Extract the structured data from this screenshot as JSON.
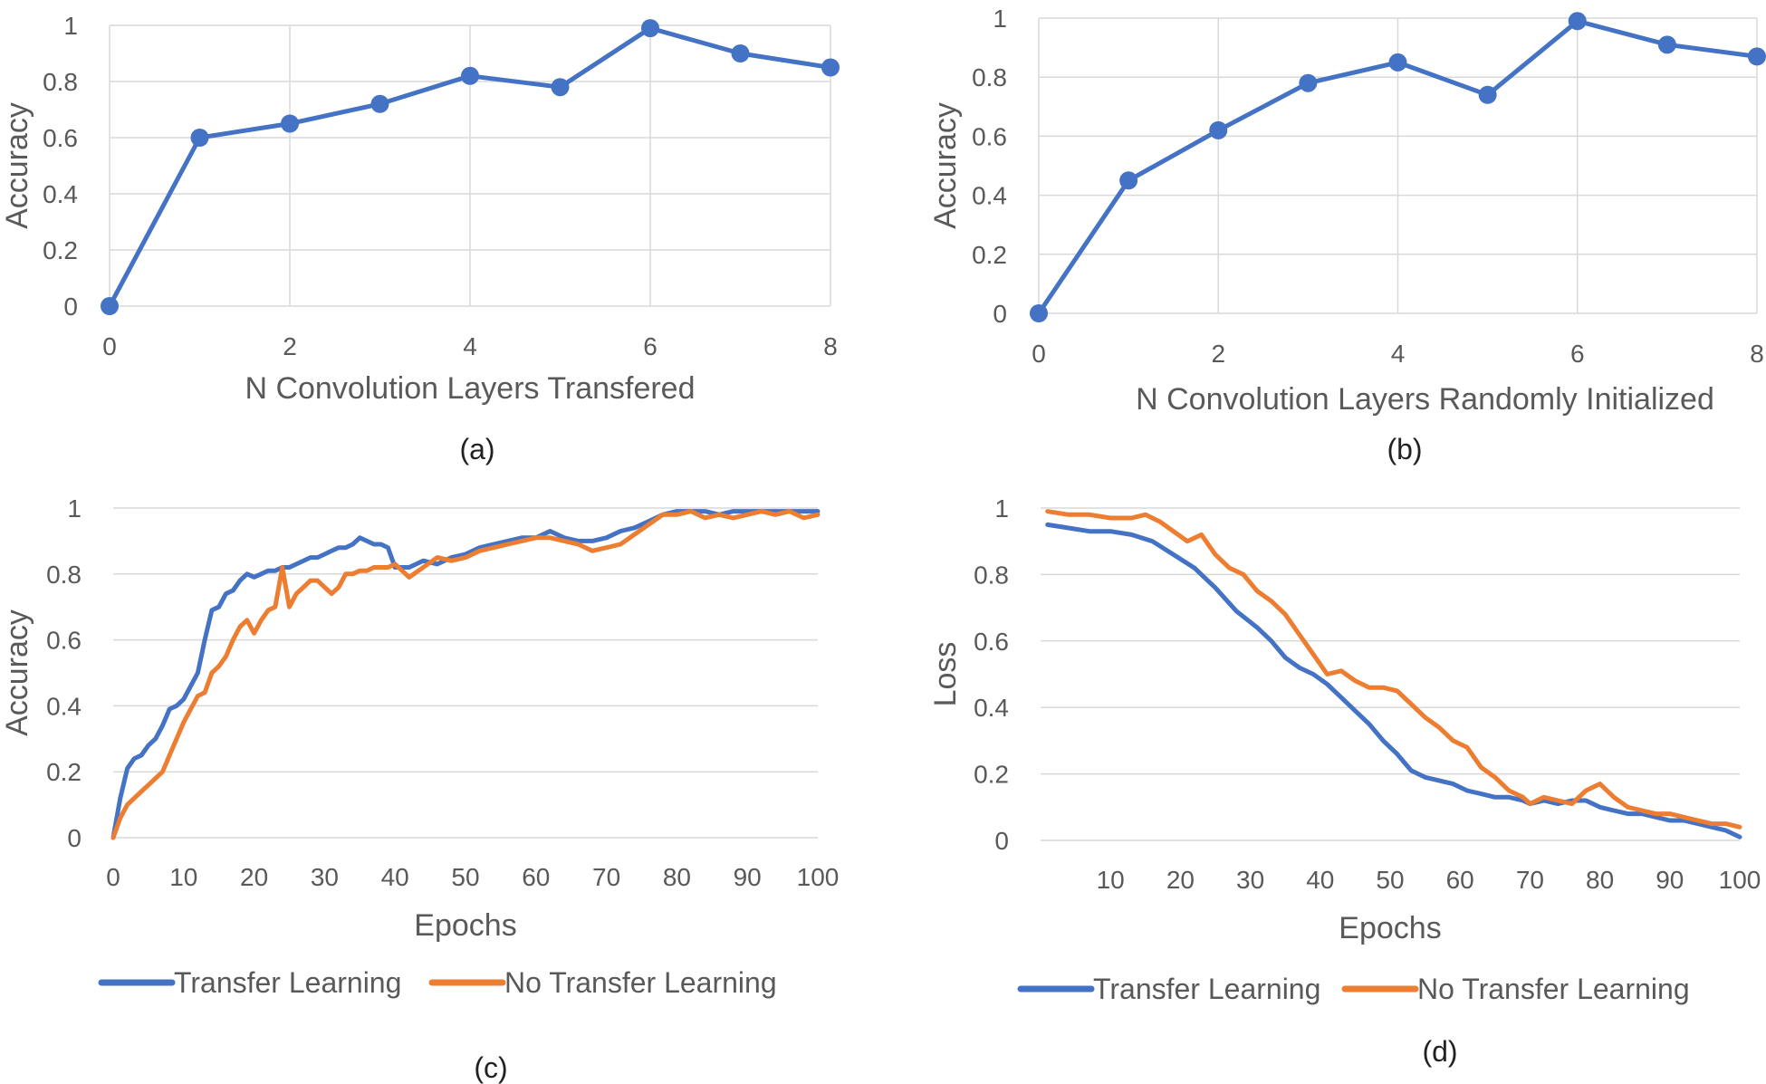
{
  "chart_data": [
    {
      "id": "a",
      "type": "line",
      "caption": "(a)",
      "xlabel": "N Convolution Layers Transfered",
      "ylabel": "Accuracy",
      "xlim": [
        0,
        8
      ],
      "ylim": [
        0,
        1
      ],
      "xticks": [
        "0",
        "2",
        "4",
        "6",
        "8"
      ],
      "yticks": [
        "0",
        "0.2",
        "0.4",
        "0.6",
        "0.8",
        "1"
      ],
      "markers": true,
      "grid": true,
      "series": [
        {
          "color": "#4472c4",
          "x": [
            0,
            1,
            2,
            3,
            4,
            5,
            6,
            7,
            8
          ],
          "y": [
            0,
            0.6,
            0.65,
            0.72,
            0.82,
            0.78,
            0.99,
            0.9,
            0.85
          ]
        }
      ]
    },
    {
      "id": "b",
      "type": "line",
      "caption": "(b)",
      "xlabel": "N Convolution Layers Randomly Initialized",
      "ylabel": "Accuracy",
      "xlim": [
        0,
        8
      ],
      "ylim": [
        0,
        1
      ],
      "xticks": [
        "0",
        "2",
        "4",
        "6",
        "8"
      ],
      "yticks": [
        "0",
        "0.2",
        "0.4",
        "0.6",
        "0.8",
        "1"
      ],
      "markers": true,
      "grid": true,
      "series": [
        {
          "color": "#4472c4",
          "x": [
            0,
            1,
            2,
            3,
            4,
            5,
            6,
            7,
            8
          ],
          "y": [
            0,
            0.45,
            0.62,
            0.78,
            0.85,
            0.74,
            0.99,
            0.91,
            0.87
          ]
        }
      ]
    },
    {
      "id": "c",
      "type": "line",
      "caption": "(c)",
      "xlabel": "Epochs",
      "ylabel": "Accuracy",
      "xlim": [
        0,
        100
      ],
      "ylim": [
        0,
        1
      ],
      "xticks": [
        "0",
        "10",
        "20",
        "30",
        "40",
        "50",
        "60",
        "70",
        "80",
        "90",
        "100"
      ],
      "yticks": [
        "0",
        "0.2",
        "0.4",
        "0.6",
        "0.8",
        "1"
      ],
      "markers": false,
      "grid": true,
      "legend_position": "bottom",
      "series": [
        {
          "name": "Transfer Learning",
          "color": "#4472c4",
          "x": [
            0,
            1,
            2,
            3,
            4,
            5,
            6,
            7,
            8,
            9,
            10,
            11,
            12,
            13,
            14,
            15,
            16,
            17,
            18,
            19,
            20,
            21,
            22,
            23,
            24,
            25,
            26,
            27,
            28,
            29,
            30,
            31,
            32,
            33,
            34,
            35,
            36,
            37,
            38,
            39,
            40,
            42,
            44,
            46,
            48,
            50,
            52,
            54,
            56,
            58,
            60,
            62,
            64,
            66,
            68,
            70,
            72,
            74,
            76,
            78,
            80,
            82,
            84,
            86,
            88,
            90,
            92,
            94,
            96,
            98,
            100
          ],
          "y": [
            0,
            0.12,
            0.21,
            0.24,
            0.25,
            0.28,
            0.3,
            0.34,
            0.39,
            0.4,
            0.42,
            0.46,
            0.5,
            0.6,
            0.69,
            0.7,
            0.74,
            0.75,
            0.78,
            0.8,
            0.79,
            0.8,
            0.81,
            0.81,
            0.82,
            0.82,
            0.83,
            0.84,
            0.85,
            0.85,
            0.86,
            0.87,
            0.88,
            0.88,
            0.89,
            0.91,
            0.9,
            0.89,
            0.89,
            0.88,
            0.82,
            0.82,
            0.84,
            0.83,
            0.85,
            0.86,
            0.88,
            0.89,
            0.9,
            0.91,
            0.91,
            0.93,
            0.91,
            0.9,
            0.9,
            0.91,
            0.93,
            0.94,
            0.96,
            0.98,
            0.99,
            0.99,
            0.99,
            0.98,
            0.99,
            0.99,
            0.99,
            0.99,
            0.99,
            0.99,
            0.99
          ]
        },
        {
          "name": "No Transfer Learning",
          "color": "#ed7d31",
          "x": [
            0,
            1,
            2,
            3,
            4,
            5,
            6,
            7,
            8,
            9,
            10,
            11,
            12,
            13,
            14,
            15,
            16,
            17,
            18,
            19,
            20,
            21,
            22,
            23,
            24,
            25,
            26,
            27,
            28,
            29,
            30,
            31,
            32,
            33,
            34,
            35,
            36,
            37,
            38,
            39,
            40,
            42,
            44,
            46,
            48,
            50,
            52,
            54,
            56,
            58,
            60,
            62,
            64,
            66,
            68,
            70,
            72,
            74,
            76,
            78,
            80,
            82,
            84,
            86,
            88,
            90,
            92,
            94,
            96,
            98,
            100
          ],
          "y": [
            0,
            0.06,
            0.1,
            0.12,
            0.14,
            0.16,
            0.18,
            0.2,
            0.25,
            0.3,
            0.35,
            0.39,
            0.43,
            0.44,
            0.5,
            0.52,
            0.55,
            0.6,
            0.64,
            0.66,
            0.62,
            0.66,
            0.69,
            0.7,
            0.82,
            0.7,
            0.74,
            0.76,
            0.78,
            0.78,
            0.76,
            0.74,
            0.76,
            0.8,
            0.8,
            0.81,
            0.81,
            0.82,
            0.82,
            0.82,
            0.83,
            0.79,
            0.82,
            0.85,
            0.84,
            0.85,
            0.87,
            0.88,
            0.89,
            0.9,
            0.91,
            0.91,
            0.9,
            0.89,
            0.87,
            0.88,
            0.89,
            0.92,
            0.95,
            0.98,
            0.98,
            0.99,
            0.97,
            0.98,
            0.97,
            0.98,
            0.99,
            0.98,
            0.99,
            0.97,
            0.98
          ]
        }
      ]
    },
    {
      "id": "d",
      "type": "line",
      "caption": "(d)",
      "xlabel": "Epochs",
      "ylabel": "Loss",
      "xlim": [
        0,
        100
      ],
      "ylim": [
        0,
        1
      ],
      "xticks": [
        "",
        "10",
        "20",
        "30",
        "40",
        "50",
        "60",
        "70",
        "80",
        "90",
        "100"
      ],
      "yticks": [
        "0",
        "0.2",
        "0.4",
        "0.6",
        "0.8",
        "1"
      ],
      "markers": false,
      "grid": true,
      "legend_position": "bottom",
      "series": [
        {
          "name": "Transfer Learning",
          "color": "#4472c4",
          "x": [
            1,
            4,
            7,
            10,
            13,
            16,
            19,
            22,
            25,
            28,
            31,
            33,
            35,
            37,
            39,
            41,
            43,
            45,
            47,
            49,
            51,
            53,
            55,
            57,
            59,
            61,
            63,
            65,
            67,
            69,
            70,
            72,
            74,
            76,
            78,
            80,
            82,
            84,
            86,
            88,
            90,
            92,
            94,
            96,
            98,
            100
          ],
          "y": [
            0.95,
            0.94,
            0.93,
            0.93,
            0.92,
            0.9,
            0.86,
            0.82,
            0.76,
            0.69,
            0.64,
            0.6,
            0.55,
            0.52,
            0.5,
            0.47,
            0.43,
            0.39,
            0.35,
            0.3,
            0.26,
            0.21,
            0.19,
            0.18,
            0.17,
            0.15,
            0.14,
            0.13,
            0.13,
            0.12,
            0.11,
            0.12,
            0.11,
            0.12,
            0.12,
            0.1,
            0.09,
            0.08,
            0.08,
            0.07,
            0.06,
            0.06,
            0.05,
            0.04,
            0.03,
            0.01
          ]
        },
        {
          "name": "No Transfer Learning",
          "color": "#ed7d31",
          "x": [
            1,
            4,
            7,
            10,
            13,
            15,
            17,
            19,
            21,
            23,
            25,
            27,
            29,
            31,
            33,
            35,
            37,
            39,
            41,
            43,
            45,
            47,
            49,
            51,
            53,
            55,
            57,
            59,
            61,
            63,
            65,
            67,
            69,
            70,
            72,
            74,
            76,
            78,
            80,
            82,
            84,
            86,
            88,
            90,
            92,
            94,
            96,
            98,
            100
          ],
          "y": [
            0.99,
            0.98,
            0.98,
            0.97,
            0.97,
            0.98,
            0.96,
            0.93,
            0.9,
            0.92,
            0.86,
            0.82,
            0.8,
            0.75,
            0.72,
            0.68,
            0.62,
            0.56,
            0.5,
            0.51,
            0.48,
            0.46,
            0.46,
            0.45,
            0.41,
            0.37,
            0.34,
            0.3,
            0.28,
            0.22,
            0.19,
            0.15,
            0.13,
            0.11,
            0.13,
            0.12,
            0.11,
            0.15,
            0.17,
            0.13,
            0.1,
            0.09,
            0.08,
            0.08,
            0.07,
            0.06,
            0.05,
            0.05,
            0.04
          ]
        }
      ]
    }
  ]
}
